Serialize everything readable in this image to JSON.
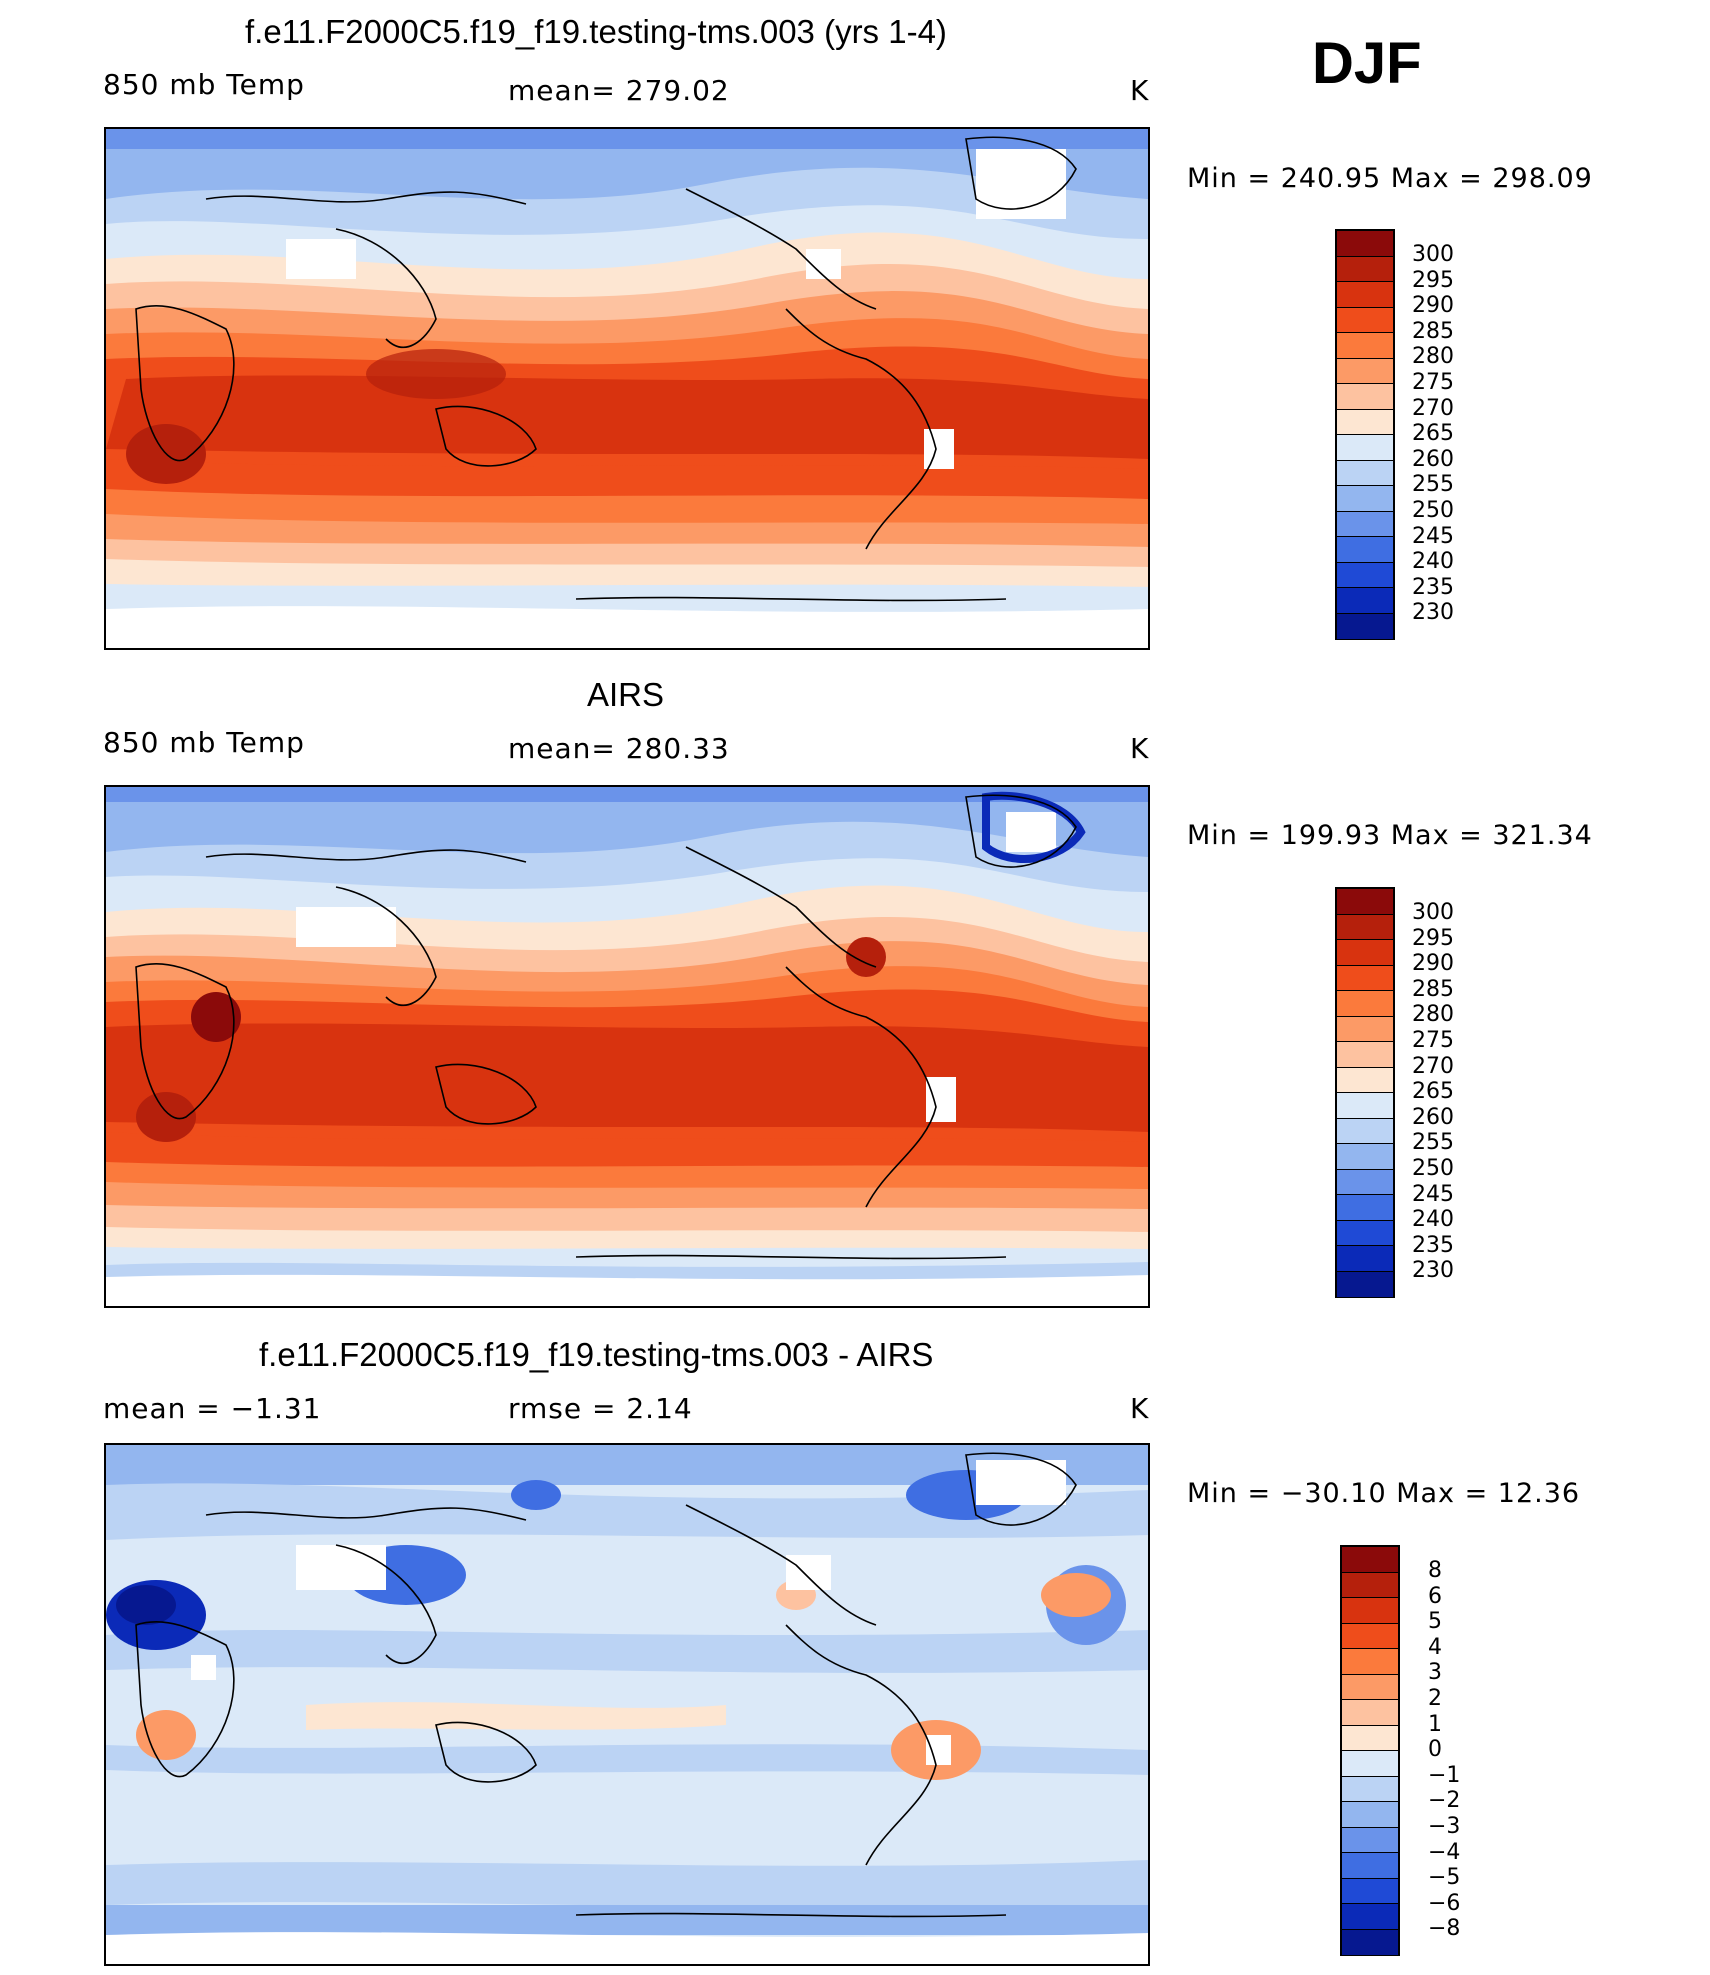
{
  "season": "DJF",
  "units": "K",
  "panels": [
    {
      "id": "model",
      "title": "f.e11.F2000C5.f19_f19.testing-tms.003 (yrs 1-4)",
      "left_label": "850 mb Temp",
      "center_label": "mean=  279.02",
      "units": "K",
      "minmax": "Min  =  240.95  Max  =  298.09",
      "colorbar": {
        "ticks": [
          "300",
          "295",
          "290",
          "285",
          "280",
          "275",
          "270",
          "265",
          "260",
          "255",
          "250",
          "245",
          "240",
          "235",
          "230"
        ],
        "colors": [
          "#8b0a0a",
          "#b5200c",
          "#d8330f",
          "#ef4d1b",
          "#fb7a3c",
          "#fc9a66",
          "#fdc2a0",
          "#fde6d2",
          "#dbe9f8",
          "#bbd3f4",
          "#93b6ef",
          "#6a93ea",
          "#3f6ee2",
          "#1f4ad6",
          "#0b2ab8",
          "#061890"
        ]
      }
    },
    {
      "id": "obs",
      "title": "AIRS",
      "left_label": "850 mb Temp",
      "center_label": "mean=  280.33",
      "units": "K",
      "minmax": "Min  =  199.93  Max  =  321.34",
      "colorbar": {
        "ticks": [
          "300",
          "295",
          "290",
          "285",
          "280",
          "275",
          "270",
          "265",
          "260",
          "255",
          "250",
          "245",
          "240",
          "235",
          "230"
        ],
        "colors": [
          "#8b0a0a",
          "#b5200c",
          "#d8330f",
          "#ef4d1b",
          "#fb7a3c",
          "#fc9a66",
          "#fdc2a0",
          "#fde6d2",
          "#dbe9f8",
          "#bbd3f4",
          "#93b6ef",
          "#6a93ea",
          "#3f6ee2",
          "#1f4ad6",
          "#0b2ab8",
          "#061890"
        ]
      }
    },
    {
      "id": "diff",
      "title": "f.e11.F2000C5.f19_f19.testing-tms.003 - AIRS",
      "left_label": "mean  =    −1.31",
      "center_label": "rmse  =     2.14",
      "units": "K",
      "minmax": "Min  =  −30.10  Max  =    12.36",
      "colorbar": {
        "ticks": [
          "8",
          "6",
          "5",
          "4",
          "3",
          "2",
          "1",
          "0",
          "−1",
          "−2",
          "−3",
          "−4",
          "−5",
          "−6",
          "−8"
        ],
        "colors": [
          "#8b0a0a",
          "#b5200c",
          "#d8330f",
          "#ef4d1b",
          "#fb7a3c",
          "#fc9a66",
          "#fdc2a0",
          "#fde6d2",
          "#dbe9f8",
          "#bbd3f4",
          "#93b6ef",
          "#6a93ea",
          "#3f6ee2",
          "#1f4ad6",
          "#0b2ab8",
          "#061890"
        ]
      }
    }
  ]
}
